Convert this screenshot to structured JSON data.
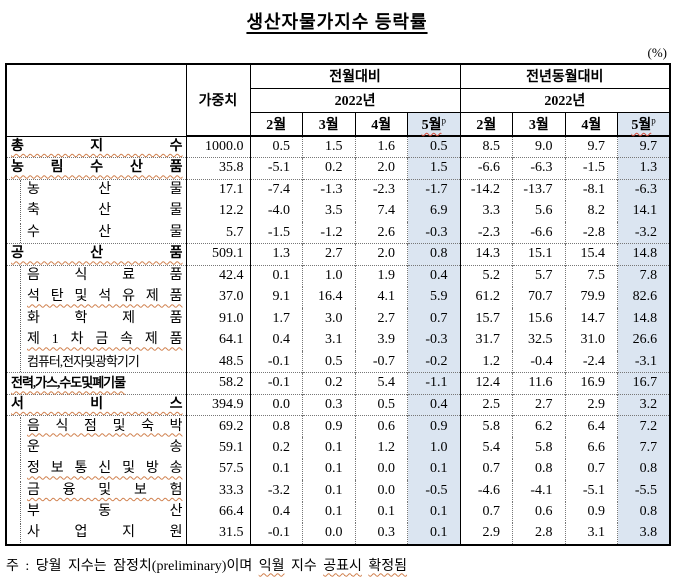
{
  "title": "생산자물가지수 등락률",
  "unit_label": "(%)",
  "table": {
    "weight_header": "가중치",
    "col_groups": [
      {
        "label": "전월대비",
        "year": "2022년"
      },
      {
        "label": "전년동월대비",
        "year": "2022년"
      }
    ],
    "months": [
      {
        "label": "2월",
        "sup": "",
        "highlight": false
      },
      {
        "label": "3월",
        "sup": "",
        "highlight": false
      },
      {
        "label": "4월",
        "sup": "",
        "highlight": false
      },
      {
        "label": "5월",
        "sup": "p",
        "highlight": true
      }
    ],
    "rows": [
      {
        "label": "총 지 수",
        "level": "section",
        "wavy": true,
        "compressed": false,
        "border_top": "none",
        "weight": "1000.0",
        "mom": [
          "0.5",
          "1.5",
          "1.6",
          "0.5"
        ],
        "yoy": [
          "8.5",
          "9.0",
          "9.7",
          "9.7"
        ]
      },
      {
        "label": "농 림 수 산 품",
        "level": "section",
        "wavy": true,
        "compressed": false,
        "border_top": "dotted",
        "weight": "35.8",
        "mom": [
          "-5.1",
          "0.2",
          "2.0",
          "1.5"
        ],
        "yoy": [
          "-6.6",
          "-6.3",
          "-1.5",
          "1.3"
        ]
      },
      {
        "label": "농 산 물",
        "level": "sub",
        "wavy": false,
        "compressed": false,
        "border_top": "dotted",
        "weight": "17.1",
        "mom": [
          "-7.4",
          "-1.3",
          "-2.3",
          "-1.7"
        ],
        "yoy": [
          "-14.2",
          "-13.7",
          "-8.1",
          "-6.3"
        ]
      },
      {
        "label": "축 산 물",
        "level": "sub",
        "wavy": false,
        "compressed": false,
        "border_top": "none",
        "weight": "12.2",
        "mom": [
          "-4.0",
          "3.5",
          "7.4",
          "6.9"
        ],
        "yoy": [
          "3.3",
          "5.6",
          "8.2",
          "14.1"
        ]
      },
      {
        "label": "수 산 물",
        "level": "sub",
        "wavy": false,
        "compressed": false,
        "border_top": "none",
        "weight": "5.7",
        "mom": [
          "-1.5",
          "-1.2",
          "2.6",
          "-0.3"
        ],
        "yoy": [
          "-2.3",
          "-6.6",
          "-2.8",
          "-3.2"
        ]
      },
      {
        "label": "공 산 품",
        "level": "section",
        "wavy": true,
        "compressed": false,
        "border_top": "dotted",
        "weight": "509.1",
        "mom": [
          "1.3",
          "2.7",
          "2.0",
          "0.8"
        ],
        "yoy": [
          "14.3",
          "15.1",
          "15.4",
          "14.8"
        ]
      },
      {
        "label": "음 식 료 품",
        "level": "sub",
        "wavy": false,
        "compressed": false,
        "border_top": "dotted",
        "weight": "42.4",
        "mom": [
          "0.1",
          "1.0",
          "1.9",
          "0.4"
        ],
        "yoy": [
          "5.2",
          "5.7",
          "7.5",
          "7.8"
        ]
      },
      {
        "label": "석 탄 및 석 유 제 품",
        "level": "sub",
        "wavy": true,
        "compressed": false,
        "border_top": "none",
        "weight": "37.0",
        "mom": [
          "9.1",
          "16.4",
          "4.1",
          "5.9"
        ],
        "yoy": [
          "61.2",
          "70.7",
          "79.9",
          "82.6"
        ]
      },
      {
        "label": "화 학 제 품",
        "level": "sub",
        "wavy": false,
        "compressed": false,
        "border_top": "none",
        "weight": "91.0",
        "mom": [
          "1.7",
          "3.0",
          "2.7",
          "0.7"
        ],
        "yoy": [
          "15.7",
          "15.6",
          "14.7",
          "14.8"
        ]
      },
      {
        "label": "제 1 차 금 속 제 품",
        "level": "sub",
        "wavy": true,
        "compressed": false,
        "border_top": "none",
        "weight": "64.1",
        "mom": [
          "0.4",
          "3.1",
          "3.9",
          "-0.3"
        ],
        "yoy": [
          "31.7",
          "32.5",
          "31.0",
          "26.6"
        ]
      },
      {
        "label": "컴퓨터,전자및광학기기",
        "level": "sub",
        "wavy": false,
        "compressed": true,
        "border_top": "none",
        "weight": "48.5",
        "mom": [
          "-0.1",
          "0.5",
          "-0.7",
          "-0.2"
        ],
        "yoy": [
          "1.2",
          "-0.4",
          "-2.4",
          "-3.1"
        ]
      },
      {
        "label": "전력,가스,수도및폐기물",
        "level": "section",
        "wavy": true,
        "compressed": true,
        "border_top": "dotted",
        "weight": "58.2",
        "mom": [
          "-0.1",
          "0.2",
          "5.4",
          "-1.1"
        ],
        "yoy": [
          "12.4",
          "11.6",
          "16.9",
          "16.7"
        ]
      },
      {
        "label": "서 비 스",
        "level": "section",
        "wavy": true,
        "compressed": false,
        "border_top": "dotted",
        "weight": "394.9",
        "mom": [
          "0.0",
          "0.3",
          "0.5",
          "0.4"
        ],
        "yoy": [
          "2.5",
          "2.7",
          "2.9",
          "3.2"
        ]
      },
      {
        "label": "음 식 점 및 숙 박",
        "level": "sub",
        "wavy": true,
        "compressed": false,
        "border_top": "dotted",
        "weight": "69.2",
        "mom": [
          "0.8",
          "0.9",
          "0.6",
          "0.9"
        ],
        "yoy": [
          "5.8",
          "6.2",
          "6.4",
          "7.2"
        ]
      },
      {
        "label": "운 송",
        "level": "sub",
        "wavy": false,
        "compressed": false,
        "border_top": "none",
        "weight": "59.1",
        "mom": [
          "0.2",
          "0.1",
          "1.2",
          "1.0"
        ],
        "yoy": [
          "5.4",
          "5.8",
          "6.6",
          "7.7"
        ]
      },
      {
        "label": "정 보 통 신 및 방 송",
        "level": "sub",
        "wavy": true,
        "compressed": false,
        "border_top": "none",
        "weight": "57.5",
        "mom": [
          "0.1",
          "0.1",
          "0.0",
          "0.1"
        ],
        "yoy": [
          "0.7",
          "0.8",
          "0.7",
          "0.8"
        ]
      },
      {
        "label": "금 융 및 보 험",
        "level": "sub",
        "wavy": true,
        "compressed": false,
        "border_top": "none",
        "weight": "33.3",
        "mom": [
          "-3.2",
          "0.1",
          "0.0",
          "-0.5"
        ],
        "yoy": [
          "-4.6",
          "-4.1",
          "-5.1",
          "-5.5"
        ]
      },
      {
        "label": "부 동 산",
        "level": "sub",
        "wavy": false,
        "compressed": false,
        "border_top": "none",
        "weight": "66.4",
        "mom": [
          "0.4",
          "0.1",
          "0.1",
          "0.1"
        ],
        "yoy": [
          "0.7",
          "0.6",
          "0.9",
          "0.8"
        ]
      },
      {
        "label": "사 업 지 원",
        "level": "sub",
        "wavy": false,
        "compressed": false,
        "border_top": "none",
        "weight": "31.5",
        "mom": [
          "-0.1",
          "0.0",
          "0.3",
          "0.1"
        ],
        "yoy": [
          "2.9",
          "2.8",
          "3.1",
          "3.8"
        ]
      }
    ]
  },
  "footnote": {
    "segments": [
      {
        "text": "주 : 당월 지수는 잠정치(preliminary)이며 ",
        "wavy": false
      },
      {
        "text": "익월",
        "wavy": true
      },
      {
        "text": " 지수 ",
        "wavy": false
      },
      {
        "text": "공표시",
        "wavy": true
      },
      {
        "text": " ",
        "wavy": false
      },
      {
        "text": "확정됨",
        "wavy": true
      }
    ]
  },
  "colors": {
    "highlight": "#dbe5f1",
    "label_wavy": "#d0804d",
    "header_wavy": "#d04a3a"
  }
}
